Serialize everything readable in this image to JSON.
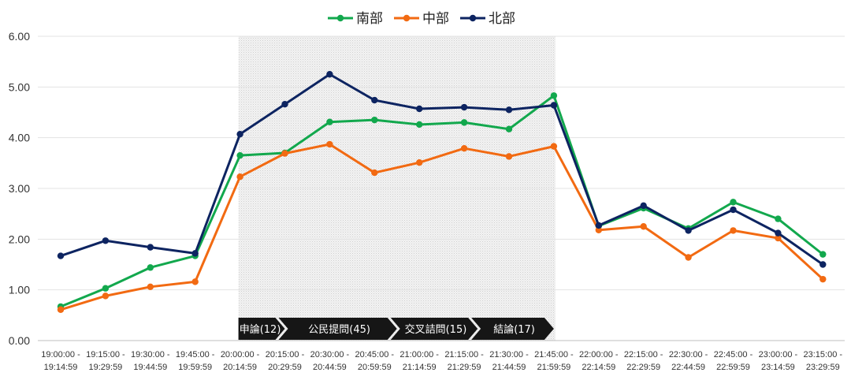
{
  "chart_data": {
    "type": "line",
    "ylim": [
      0,
      6
    ],
    "yticks": [
      "0.00",
      "1.00",
      "2.00",
      "3.00",
      "4.00",
      "5.00",
      "6.00"
    ],
    "categories": [
      [
        "19:00:00 -",
        "19:14:59"
      ],
      [
        "19:15:00 -",
        "19:29:59"
      ],
      [
        "19:30:00 -",
        "19:44:59"
      ],
      [
        "19:45:00 -",
        "19:59:59"
      ],
      [
        "20:00:00 -",
        "20:14:59"
      ],
      [
        "20:15:00 -",
        "20:29:59"
      ],
      [
        "20:30:00 -",
        "20:44:59"
      ],
      [
        "20:45:00 -",
        "20:59:59"
      ],
      [
        "21:00:00 -",
        "21:14:59"
      ],
      [
        "21:15:00 -",
        "21:29:59"
      ],
      [
        "21:30:00 -",
        "21:44:59"
      ],
      [
        "21:45:00 -",
        "21:59:59"
      ],
      [
        "22:00:00 -",
        "22:14:59"
      ],
      [
        "22:15:00 -",
        "22:29:59"
      ],
      [
        "22:30:00 -",
        "22:44:59"
      ],
      [
        "22:45:00 -",
        "22:59:59"
      ],
      [
        "23:00:00 -",
        "23:14:59"
      ],
      [
        "23:15:00 -",
        "23:29:59"
      ]
    ],
    "series": [
      {
        "name": "南部",
        "color": "#12a84d",
        "values": [
          0.67,
          1.03,
          1.44,
          1.67,
          3.65,
          3.7,
          4.31,
          4.35,
          4.26,
          4.3,
          4.17,
          4.83,
          2.26,
          2.61,
          2.21,
          2.73,
          2.4,
          1.7
        ]
      },
      {
        "name": "中部",
        "color": "#f26a12",
        "values": [
          0.61,
          0.88,
          1.06,
          1.16,
          3.23,
          3.69,
          3.87,
          3.31,
          3.51,
          3.79,
          3.63,
          3.83,
          2.18,
          2.25,
          1.64,
          2.17,
          2.02,
          1.21
        ]
      },
      {
        "name": "北部",
        "color": "#0d2461",
        "values": [
          1.67,
          1.97,
          1.84,
          1.72,
          4.07,
          4.66,
          5.25,
          4.74,
          4.57,
          4.6,
          4.55,
          4.64,
          2.27,
          2.66,
          2.17,
          2.58,
          2.12,
          1.5
        ]
      }
    ],
    "legend_position": "top-center",
    "grid": true,
    "highlight_range": [
      4,
      11
    ],
    "phases": [
      {
        "label": "申論(12)",
        "from": 4,
        "to": 5
      },
      {
        "label": "公民提問(45)",
        "from": 5,
        "to": 7.5
      },
      {
        "label": "交叉詰問(15)",
        "from": 7.5,
        "to": 9.3
      },
      {
        "label": "結論(17)",
        "from": 9.3,
        "to": 11
      }
    ]
  }
}
